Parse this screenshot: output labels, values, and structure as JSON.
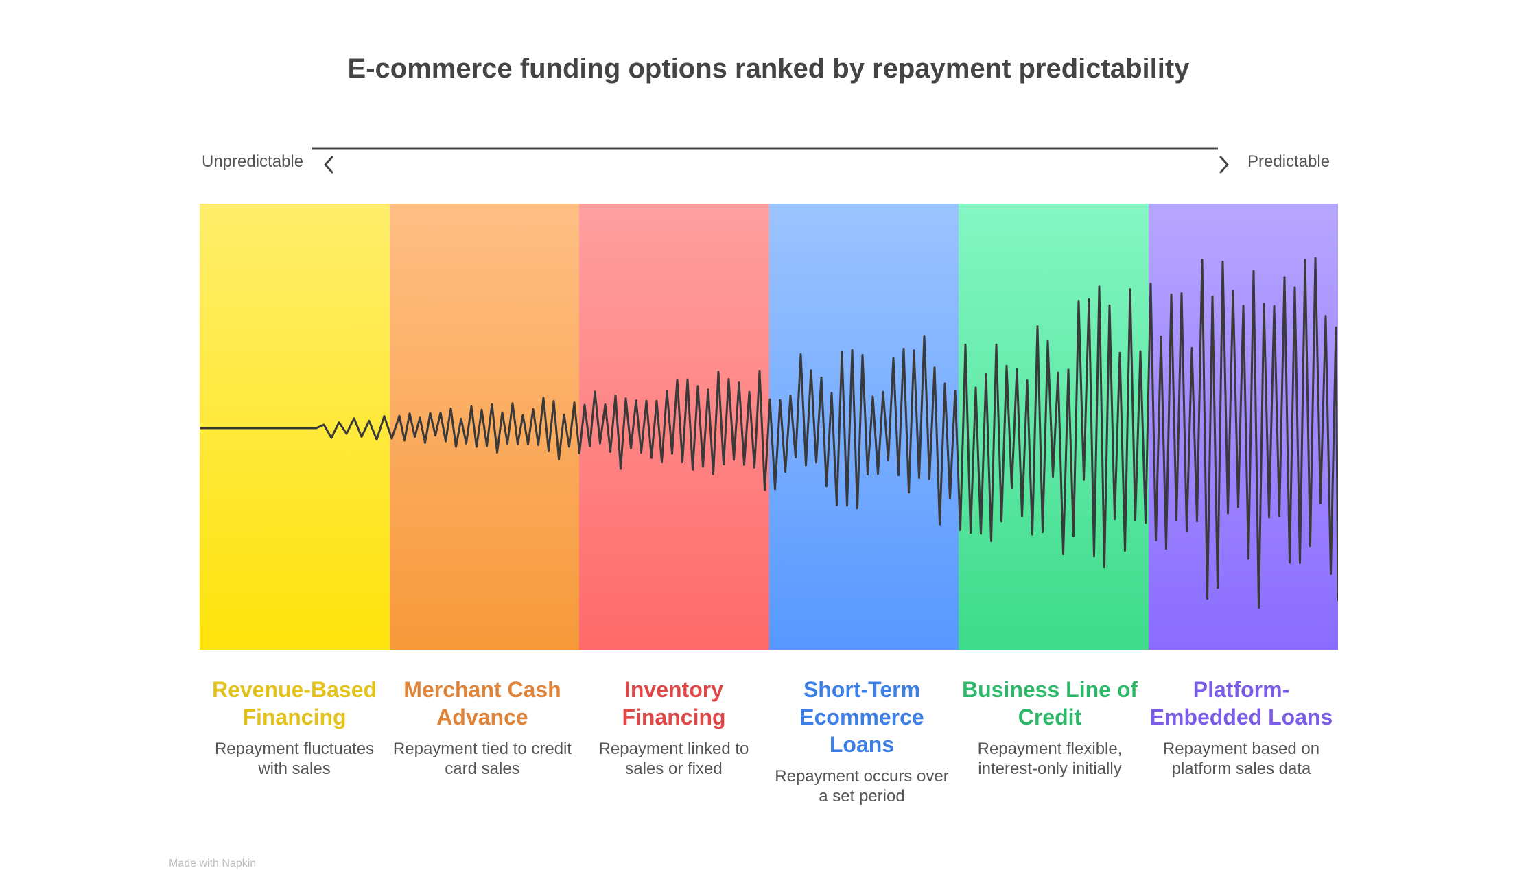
{
  "title": "E-commerce funding options ranked by repayment predictability",
  "axis": {
    "left_label": "Unpredictable",
    "right_label": "Predictable",
    "left_icon": "chevron-left-icon",
    "right_icon": "chevron-right-icon"
  },
  "options": [
    {
      "title": "Revenue-Based Financing",
      "description": "Repayment fluctuates with sales",
      "accent": "#E3C21A",
      "band_top": "#FFEE6B",
      "band_bottom": "#FFE40C"
    },
    {
      "title": "Merchant Cash Advance",
      "description": "Repayment tied to credit card sales",
      "accent": "#E0843A",
      "band_top": "#FFBF85",
      "band_bottom": "#F7993A"
    },
    {
      "title": "Inventory Financing",
      "description": "Repayment linked to sales or fixed",
      "accent": "#E04848",
      "band_top": "#FFA0A0",
      "band_bottom": "#FF6A6A"
    },
    {
      "title": "Short-Term Ecommerce Loans",
      "description": "Repayment occurs over a set period",
      "accent": "#3C7FE6",
      "band_top": "#9CC4FF",
      "band_bottom": "#5798FF"
    },
    {
      "title": "Business Line of Credit",
      "description": "Repayment flexible, interest-only initially",
      "accent": "#2DB86A",
      "band_top": "#85F7C4",
      "band_bottom": "#3DDB8A"
    },
    {
      "title": "Platform-Embedded Loans",
      "description": "Repayment based on platform sales data",
      "accent": "#7A5CE6",
      "band_top": "#B7A6FF",
      "band_bottom": "#8A6CFF"
    }
  ],
  "footer": "Made with Napkin",
  "wave_color": "#3a3a3a"
}
